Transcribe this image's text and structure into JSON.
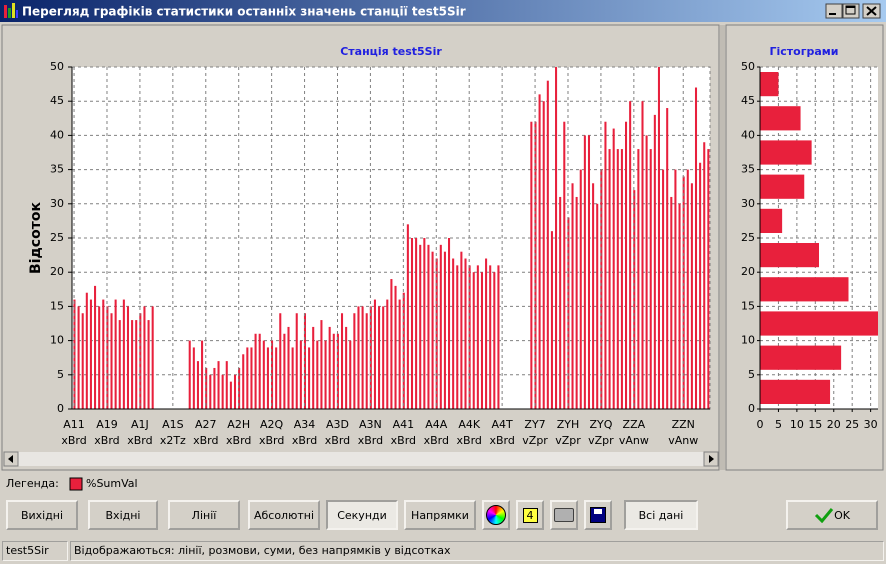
{
  "window": {
    "title": "Перегляд графіків статистики останніх значень станції test5Sir"
  },
  "chart_data": [
    {
      "type": "bar",
      "title": "Станція test5Sir",
      "y_label": "Відсоток",
      "categories": [
        [
          "A11",
          "xBrd"
        ],
        null,
        null,
        null,
        null,
        null,
        null,
        null,
        [
          "A19",
          "xBrd"
        ],
        null,
        null,
        null,
        null,
        null,
        null,
        null,
        [
          "A1J",
          "xBrd"
        ],
        null,
        null,
        null,
        null,
        null,
        null,
        null,
        [
          "A1S",
          "x2Tz"
        ],
        null,
        null,
        null,
        null,
        null,
        null,
        null,
        [
          "A27",
          "xBrd"
        ],
        null,
        null,
        null,
        null,
        null,
        null,
        null,
        [
          "A2H",
          "xBrd"
        ],
        null,
        null,
        null,
        null,
        null,
        null,
        null,
        [
          "A2Q",
          "xBrd"
        ],
        null,
        null,
        null,
        null,
        null,
        null,
        null,
        [
          "A34",
          "xBrd"
        ],
        null,
        null,
        null,
        null,
        null,
        null,
        null,
        [
          "A3D",
          "xBrd"
        ],
        null,
        null,
        null,
        null,
        null,
        null,
        null,
        [
          "A3N",
          "xBrd"
        ],
        null,
        null,
        null,
        null,
        null,
        null,
        null,
        [
          "A41",
          "xBrd"
        ],
        null,
        null,
        null,
        null,
        null,
        null,
        null,
        [
          "A4A",
          "xBrd"
        ],
        null,
        null,
        null,
        null,
        null,
        null,
        null,
        [
          "A4K",
          "xBrd"
        ],
        null,
        null,
        null,
        null,
        null,
        null,
        null,
        [
          "A4T",
          "xBrd"
        ],
        null,
        null,
        null,
        null,
        null,
        null,
        null,
        [
          "ZY7",
          "vZpr"
        ],
        null,
        null,
        null,
        null,
        null,
        null,
        null,
        [
          "ZYH",
          "vZpr"
        ],
        null,
        null,
        null,
        null,
        null,
        null,
        null,
        [
          "ZYQ",
          "vZpr"
        ],
        null,
        null,
        null,
        null,
        null,
        null,
        null,
        [
          "ZZA",
          "vAnw"
        ],
        null,
        null,
        null,
        null,
        null,
        null,
        null,
        null,
        null,
        null,
        null,
        [
          "ZZN",
          "vAnw"
        ],
        null,
        null,
        null,
        null,
        null,
        null
      ],
      "series": [
        {
          "name": "%SumVal",
          "color": "#e8203c",
          "values": [
            16,
            15,
            14,
            17,
            16,
            18,
            15,
            16,
            15,
            14,
            16,
            13,
            16,
            15,
            13,
            13,
            14,
            15,
            13,
            15,
            0,
            0,
            0,
            0,
            0,
            0,
            0,
            0,
            10,
            9,
            7,
            10,
            6,
            5,
            6,
            7,
            5,
            7,
            4,
            5,
            6,
            8,
            9,
            9,
            11,
            11,
            10,
            9,
            10,
            9,
            14,
            11,
            12,
            9,
            14,
            10,
            14,
            9,
            12,
            10,
            13,
            10,
            12,
            11,
            11,
            14,
            12,
            10,
            14,
            15,
            15,
            14,
            15,
            16,
            15,
            15,
            16,
            19,
            18,
            16,
            17,
            27,
            25,
            25,
            24,
            25,
            24,
            23,
            22,
            24,
            23,
            25,
            22,
            21,
            23,
            22,
            21,
            20,
            21,
            20,
            22,
            21,
            20,
            21,
            0,
            0,
            0,
            0,
            0,
            0,
            0,
            42,
            42,
            46,
            45,
            48,
            26,
            50,
            31,
            42,
            28,
            33,
            31,
            35,
            40,
            40,
            33,
            30,
            35,
            42,
            38,
            41,
            38,
            38,
            42,
            45,
            32,
            38,
            45,
            40,
            38,
            43,
            50,
            35,
            44,
            31,
            35,
            30,
            34,
            35,
            33,
            47,
            36,
            39,
            38
          ]
        }
      ],
      "ylim": [
        0,
        50
      ],
      "yticks": [
        0,
        5,
        10,
        15,
        20,
        25,
        30,
        35,
        40,
        45,
        50
      ],
      "grid": true
    },
    {
      "type": "histogram",
      "title": "Гістограми",
      "orientation": "horizontal",
      "color": "#e8203c",
      "bins": [
        0,
        5,
        10,
        15,
        20,
        25,
        30,
        35,
        40,
        45,
        50
      ],
      "values": [
        19,
        22,
        32,
        24,
        16,
        6,
        12,
        14,
        11,
        5
      ],
      "xlim": [
        0,
        32
      ],
      "xticks": [
        0,
        5,
        10,
        15,
        20,
        25,
        30
      ],
      "ylim": [
        0,
        50
      ],
      "yticks": [
        0,
        5,
        10,
        15,
        20,
        25,
        30,
        35,
        40,
        45,
        50
      ],
      "grid": true
    }
  ],
  "legend_label": "Легенда:",
  "buttons": [
    "Вихідні",
    "Вхідні",
    "Лінії",
    "Абсолютні",
    "Секунди",
    "Напрямки"
  ],
  "icon_label": "4",
  "all_data_button": "Всі дані",
  "ok_button": "OK",
  "status_bar": [
    "test5Sir",
    "Відображаються: лінії, розмови, суми, без напрямків у відсотках"
  ]
}
